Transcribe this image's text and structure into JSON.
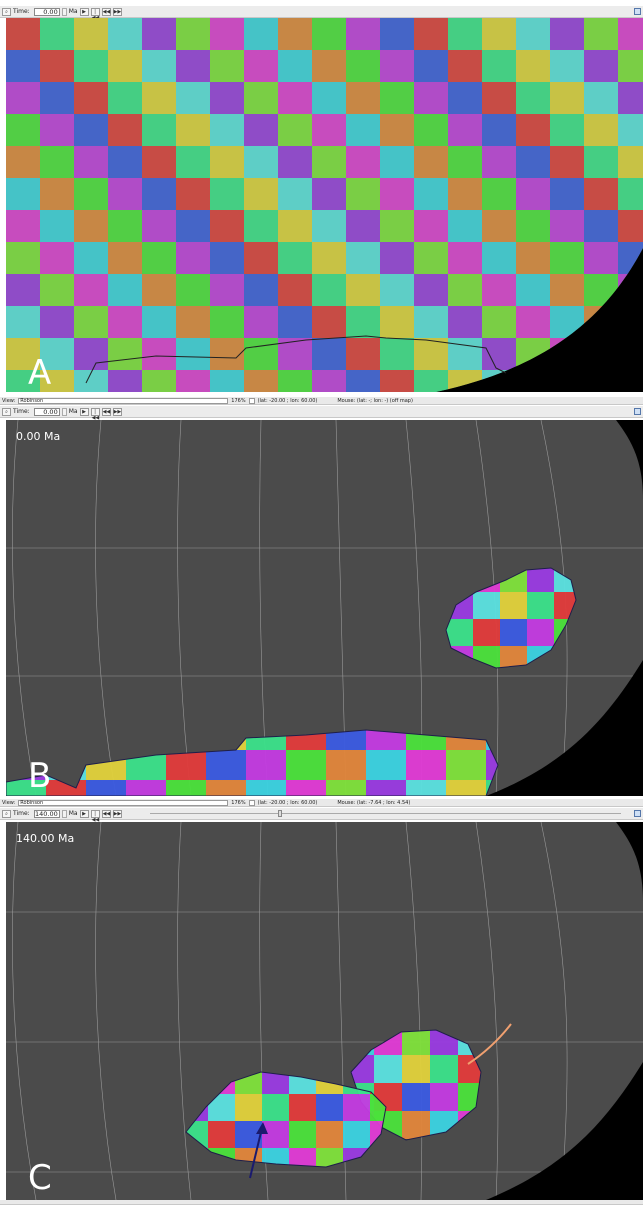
{
  "toolbarA": {
    "time_label": "Time:",
    "time_value": "0.00",
    "unit": "Ma"
  },
  "panelA": {
    "letter": "A"
  },
  "viewbarB": {
    "view_label": "View:",
    "view_value": "Robinson",
    "zoom": "176%",
    "camera": "(lat: -20.00 ; lon: 60.00)",
    "mouse": "Mouse: (lat: -; lon: -) (off map)"
  },
  "toolbarB": {
    "time_label": "Time:",
    "time_value": "0.00",
    "unit": "Ma"
  },
  "panelB": {
    "letter": "B",
    "time_overlay": "0.00 Ma"
  },
  "viewbarC": {
    "view_label": "View:",
    "view_value": "Robinson",
    "zoom": "176%",
    "camera": "(lat: -20.00 ; lon: 60.00)",
    "mouse": "Mouse: (lat: -7.64 ; lon: 4.54)"
  },
  "toolbarC": {
    "time_label": "Time:",
    "time_value": "140.00",
    "unit": "Ma"
  },
  "panelC": {
    "letter": "C",
    "time_overlay": "140.00 Ma"
  },
  "buttons": {
    "play": "▶",
    "first": "|◀◀",
    "back": "◀◀",
    "forward": "▶▶"
  },
  "colors": {
    "ocean": "#4b4b4b",
    "grid": "#9a9a9a",
    "background": "#000000",
    "arrow": "#1a1a6e",
    "track": "#f0a070"
  }
}
